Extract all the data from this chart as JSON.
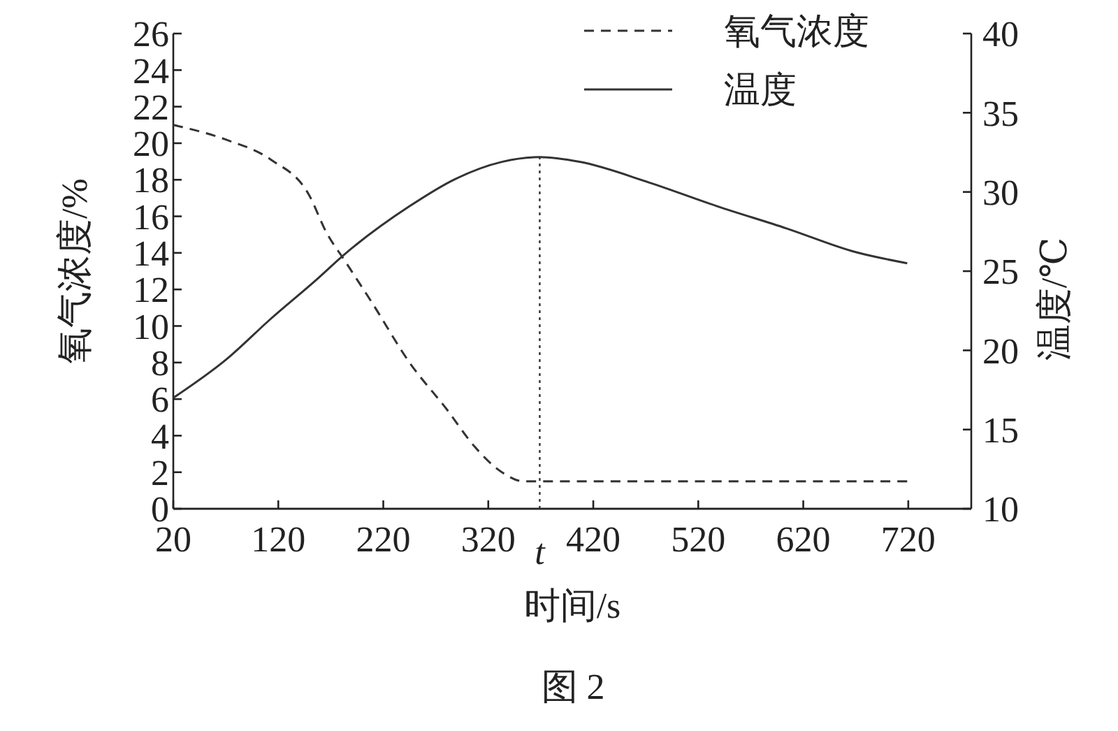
{
  "chart_data": {
    "type": "line",
    "xlabel": "时间/s",
    "ylabel": "氧气浓度/%",
    "y2label": "温度/℃",
    "xlim": [
      20,
      780
    ],
    "xticks": [
      20,
      120,
      220,
      320,
      420,
      520,
      620,
      720
    ],
    "ylim": [
      0,
      26
    ],
    "yticks": [
      0,
      2,
      4,
      6,
      8,
      10,
      12,
      14,
      16,
      18,
      20,
      22,
      24,
      26
    ],
    "y2lim": [
      10,
      40
    ],
    "y2ticks": [
      10,
      15,
      20,
      25,
      30,
      35,
      40
    ],
    "legend": "top right",
    "grid": false,
    "series": [
      {
        "name": "氧气浓度",
        "color": "#333333",
        "line_style": "dashed",
        "x": [
          20,
          70,
          113,
          149,
          166,
          183,
          209,
          245,
          281,
          307,
          333,
          354,
          369,
          719
        ],
        "values": [
          21,
          20.2,
          19.1,
          17.2,
          15.1,
          13.6,
          11.3,
          8.0,
          5.4,
          3.4,
          2.0,
          1.5,
          1.5,
          1.5
        ]
      },
      {
        "name": "温度",
        "color": "#333333",
        "line_style": "solid",
        "axis": "y2",
        "x": [
          20,
          70,
          113,
          157,
          182,
          245,
          288,
          333,
          369,
          407,
          473,
          538,
          604,
          670,
          719
        ],
        "values": [
          17.0,
          19.4,
          22.0,
          24.5,
          26.0,
          29.1,
          30.8,
          31.9,
          32.2,
          31.9,
          30.6,
          29.1,
          27.7,
          26.2,
          25.5
        ]
      }
    ],
    "ref_lines": [
      {
        "axis": "x",
        "value": 369,
        "label": "t",
        "line_style": "dotted",
        "color": "#333333"
      }
    ],
    "annotations": [
      "图 2"
    ]
  }
}
